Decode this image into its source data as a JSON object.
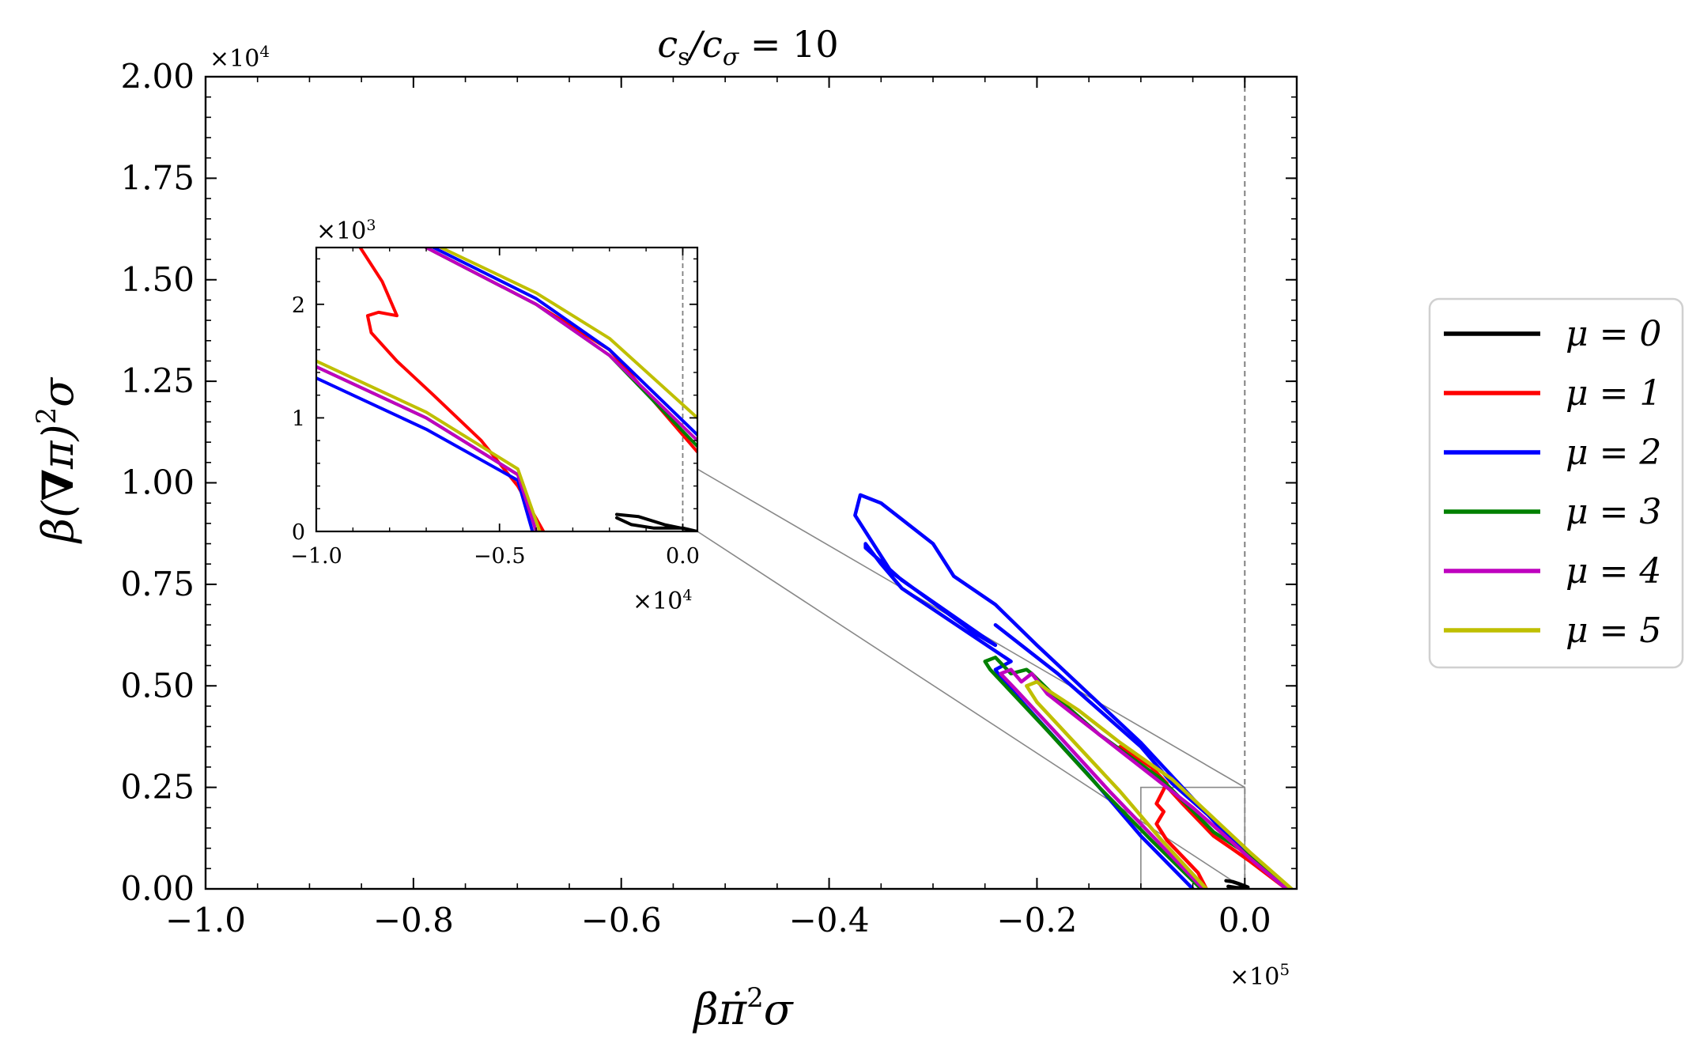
{
  "chart_data": [
    {
      "type": "line",
      "id": "main",
      "title": "c_s/c_σ = 10",
      "title_display": {
        "base": "c",
        "sub1": "s",
        "slash": "/c",
        "sub2": "σ",
        "rest": " = 10"
      },
      "xlabel": "β π̇² σ",
      "xlabel_display": {
        "b": "β",
        "pi": "π̇",
        "sup": "2",
        "s": "σ"
      },
      "ylabel": "β(∇π)²σ",
      "ylabel_display": {
        "b": "β(",
        "nabla": "∇",
        "pi": "π)",
        "sup": "2",
        "s": "σ"
      },
      "x_scale": "×10^5",
      "x_scale_display": {
        "base": "×10",
        "exp": "5"
      },
      "y_scale": "×10^4",
      "y_scale_display": {
        "base": "×10",
        "exp": "4"
      },
      "xlim": [
        -1.0,
        0.05
      ],
      "ylim": [
        0.0,
        2.0
      ],
      "xticks": [
        -1.0,
        -0.8,
        -0.6,
        -0.4,
        -0.2,
        0.0
      ],
      "xtick_labels": [
        "−1.0",
        "−0.8",
        "−0.6",
        "−0.4",
        "−0.2",
        "0.0"
      ],
      "yticks": [
        0.0,
        0.25,
        0.5,
        0.75,
        1.0,
        1.25,
        1.5,
        1.75,
        2.0
      ],
      "ytick_labels": [
        "0.00",
        "0.25",
        "0.50",
        "0.75",
        "1.00",
        "1.25",
        "1.50",
        "1.75",
        "2.00"
      ],
      "vline_x": 0.0,
      "zoom_box": {
        "x": [
          -0.1,
          0.0
        ],
        "y": [
          0.0,
          0.25
        ]
      },
      "series": [
        {
          "name": "μ = 0",
          "color": "#000000",
          "segments": [
            [
              [
                -0.018,
                0.02
              ],
              [
                -0.012,
                0.018
              ],
              [
                -0.005,
                0.012
              ],
              [
                0.0,
                0.007
              ],
              [
                0.003,
                0.004
              ],
              [
                0.0,
                0.003
              ],
              [
                -0.008,
                0.003
              ],
              [
                -0.016,
                0.006
              ]
            ]
          ]
        },
        {
          "name": "μ = 1",
          "color": "#ff0000",
          "segments": [
            [
              [
                -0.12,
                0.35
              ],
              [
                -0.09,
                0.3
              ],
              [
                -0.075,
                0.26
              ],
              [
                -0.085,
                0.21
              ],
              [
                -0.078,
                0.19
              ],
              [
                -0.085,
                0.16
              ],
              [
                -0.075,
                0.12
              ],
              [
                -0.06,
                0.08
              ],
              [
                -0.045,
                0.04
              ],
              [
                -0.037,
                0.0
              ]
            ],
            [
              [
                -0.085,
                0.28
              ],
              [
                -0.06,
                0.21
              ],
              [
                -0.03,
                0.13
              ],
              [
                -0.01,
                0.095
              ],
              [
                0.004,
                0.07
              ],
              [
                0.04,
                0.0
              ]
            ]
          ]
        },
        {
          "name": "μ = 2",
          "color": "#0000ff",
          "segments": [
            [
              [
                -0.24,
                0.65
              ],
              [
                -0.18,
                0.53
              ],
              [
                -0.14,
                0.44
              ],
              [
                -0.1,
                0.35
              ],
              [
                -0.07,
                0.26
              ],
              [
                -0.03,
                0.17
              ],
              [
                -0.01,
                0.12
              ],
              [
                0.004,
                0.08
              ],
              [
                0.04,
                0.0
              ]
            ],
            [
              [
                -0.05,
                0.0
              ],
              [
                -0.1,
                0.13
              ],
              [
                -0.15,
                0.28
              ],
              [
                -0.2,
                0.42
              ],
              [
                -0.235,
                0.52
              ],
              [
                -0.24,
                0.54
              ],
              [
                -0.225,
                0.56
              ],
              [
                -0.33,
                0.74
              ],
              [
                -0.35,
                0.8
              ],
              [
                -0.365,
                0.85
              ],
              [
                -0.365,
                0.84
              ],
              [
                -0.33,
                0.76
              ],
              [
                -0.24,
                0.6
              ],
              [
                -0.26,
                0.63
              ],
              [
                -0.34,
                0.78
              ],
              [
                -0.375,
                0.92
              ],
              [
                -0.37,
                0.97
              ],
              [
                -0.35,
                0.95
              ],
              [
                -0.3,
                0.85
              ],
              [
                -0.28,
                0.77
              ],
              [
                -0.24,
                0.7
              ],
              [
                -0.2,
                0.6
              ],
              [
                -0.15,
                0.48
              ],
              [
                -0.1,
                0.36
              ],
              [
                -0.06,
                0.25
              ],
              [
                -0.02,
                0.14
              ],
              [
                0.0,
                0.1
              ],
              [
                0.04,
                0.0
              ]
            ]
          ]
        },
        {
          "name": "μ = 3",
          "color": "#008000",
          "segments": [
            [
              [
                -0.042,
                0.0
              ],
              [
                -0.09,
                0.12
              ],
              [
                -0.14,
                0.25
              ],
              [
                -0.19,
                0.39
              ],
              [
                -0.245,
                0.54
              ],
              [
                -0.25,
                0.56
              ],
              [
                -0.24,
                0.57
              ],
              [
                -0.225,
                0.53
              ],
              [
                -0.21,
                0.54
              ],
              [
                -0.205,
                0.53
              ],
              [
                -0.185,
                0.48
              ],
              [
                -0.14,
                0.38
              ],
              [
                -0.08,
                0.27
              ],
              [
                -0.03,
                0.14
              ],
              [
                0.0,
                0.09
              ],
              [
                0.04,
                0.0
              ]
            ]
          ]
        },
        {
          "name": "μ = 4",
          "color": "#bf00bf",
          "segments": [
            [
              [
                -0.04,
                0.0
              ],
              [
                -0.085,
                0.12
              ],
              [
                -0.13,
                0.24
              ],
              [
                -0.18,
                0.38
              ],
              [
                -0.22,
                0.49
              ],
              [
                -0.235,
                0.53
              ],
              [
                -0.225,
                0.54
              ],
              [
                -0.215,
                0.51
              ],
              [
                -0.205,
                0.53
              ],
              [
                -0.19,
                0.48
              ],
              [
                -0.15,
                0.4
              ],
              [
                -0.1,
                0.3
              ],
              [
                -0.05,
                0.2
              ],
              [
                -0.01,
                0.11
              ],
              [
                0.005,
                0.075
              ],
              [
                0.04,
                0.0
              ]
            ]
          ]
        },
        {
          "name": "μ = 5",
          "color": "#bfbf00",
          "segments": [
            [
              [
                -0.037,
                0.0
              ],
              [
                -0.08,
                0.12
              ],
              [
                -0.12,
                0.24
              ],
              [
                -0.16,
                0.35
              ],
              [
                -0.2,
                0.46
              ],
              [
                -0.21,
                0.5
              ],
              [
                -0.2,
                0.51
              ],
              [
                -0.19,
                0.49
              ],
              [
                -0.16,
                0.44
              ],
              [
                -0.12,
                0.36
              ],
              [
                -0.07,
                0.27
              ],
              [
                -0.02,
                0.15
              ],
              [
                0.005,
                0.09
              ],
              [
                0.045,
                0.0
              ]
            ]
          ]
        }
      ],
      "legend": {
        "position": "outside-right",
        "entries": [
          "μ = 0",
          "μ = 1",
          "μ = 2",
          "μ = 3",
          "μ = 4",
          "μ = 5"
        ]
      }
    },
    {
      "type": "line",
      "id": "inset",
      "title": "",
      "x_scale": "×10^4",
      "x_scale_display": {
        "base": "×10",
        "exp": "4"
      },
      "y_scale": "×10^3",
      "y_scale_display": {
        "base": "×10",
        "exp": "3"
      },
      "xlim": [
        -1.0,
        0.04
      ],
      "ylim": [
        0.0,
        2.5
      ],
      "xticks": [
        -1.0,
        -0.5,
        0.0
      ],
      "xtick_labels": [
        "−1.0",
        "−0.5",
        "0.0"
      ],
      "yticks": [
        0,
        1,
        2
      ],
      "ytick_labels": [
        "0",
        "1",
        "2"
      ],
      "vline_x": 0.0,
      "series": [
        {
          "name": "μ = 0",
          "color": "#000000",
          "segments": [
            [
              [
                -0.18,
                0.15
              ],
              [
                -0.12,
                0.13
              ],
              [
                -0.05,
                0.06
              ],
              [
                0.04,
                0.0
              ],
              [
                0.0,
                0.03
              ],
              [
                -0.08,
                0.03
              ],
              [
                -0.14,
                0.06
              ],
              [
                -0.18,
                0.12
              ]
            ]
          ]
        },
        {
          "name": "μ = 1",
          "color": "#ff0000",
          "segments": [
            [
              [
                -0.88,
                2.5
              ],
              [
                -0.82,
                2.2
              ],
              [
                -0.78,
                1.9
              ],
              [
                -0.83,
                1.93
              ],
              [
                -0.86,
                1.9
              ],
              [
                -0.85,
                1.75
              ],
              [
                -0.78,
                1.5
              ],
              [
                -0.68,
                1.2
              ],
              [
                -0.55,
                0.8
              ],
              [
                -0.45,
                0.4
              ],
              [
                -0.38,
                0.0
              ]
            ],
            [
              [
                -0.7,
                2.5
              ],
              [
                -0.4,
                2.0
              ],
              [
                -0.2,
                1.6
              ],
              [
                0.04,
                0.7
              ]
            ]
          ]
        },
        {
          "name": "μ = 2",
          "color": "#0000ff",
          "segments": [
            [
              [
                -1.0,
                1.35
              ],
              [
                -0.7,
                0.9
              ],
              [
                -0.45,
                0.45
              ],
              [
                -0.41,
                0.0
              ]
            ],
            [
              [
                -0.68,
                2.5
              ],
              [
                -0.4,
                2.05
              ],
              [
                -0.2,
                1.6
              ],
              [
                0.04,
                0.85
              ]
            ]
          ]
        },
        {
          "name": "μ = 3",
          "color": "#008000",
          "segments": [
            [
              [
                -1.0,
                1.45
              ],
              [
                -0.7,
                1.0
              ],
              [
                -0.45,
                0.5
              ],
              [
                -0.4,
                0.0
              ]
            ],
            [
              [
                -0.7,
                2.5
              ],
              [
                -0.4,
                2.0
              ],
              [
                -0.2,
                1.55
              ],
              [
                0.04,
                0.75
              ]
            ]
          ]
        },
        {
          "name": "μ = 4",
          "color": "#bf00bf",
          "segments": [
            [
              [
                -1.0,
                1.45
              ],
              [
                -0.7,
                1.0
              ],
              [
                -0.45,
                0.5
              ],
              [
                -0.4,
                0.0
              ]
            ],
            [
              [
                -0.7,
                2.5
              ],
              [
                -0.4,
                2.0
              ],
              [
                -0.2,
                1.55
              ],
              [
                0.04,
                0.8
              ]
            ]
          ]
        },
        {
          "name": "μ = 5",
          "color": "#bfbf00",
          "segments": [
            [
              [
                -1.0,
                1.5
              ],
              [
                -0.7,
                1.05
              ],
              [
                -0.45,
                0.55
              ],
              [
                -0.39,
                0.0
              ]
            ],
            [
              [
                -0.66,
                2.5
              ],
              [
                -0.4,
                2.1
              ],
              [
                -0.2,
                1.7
              ],
              [
                0.04,
                1.0
              ]
            ]
          ]
        }
      ]
    }
  ]
}
